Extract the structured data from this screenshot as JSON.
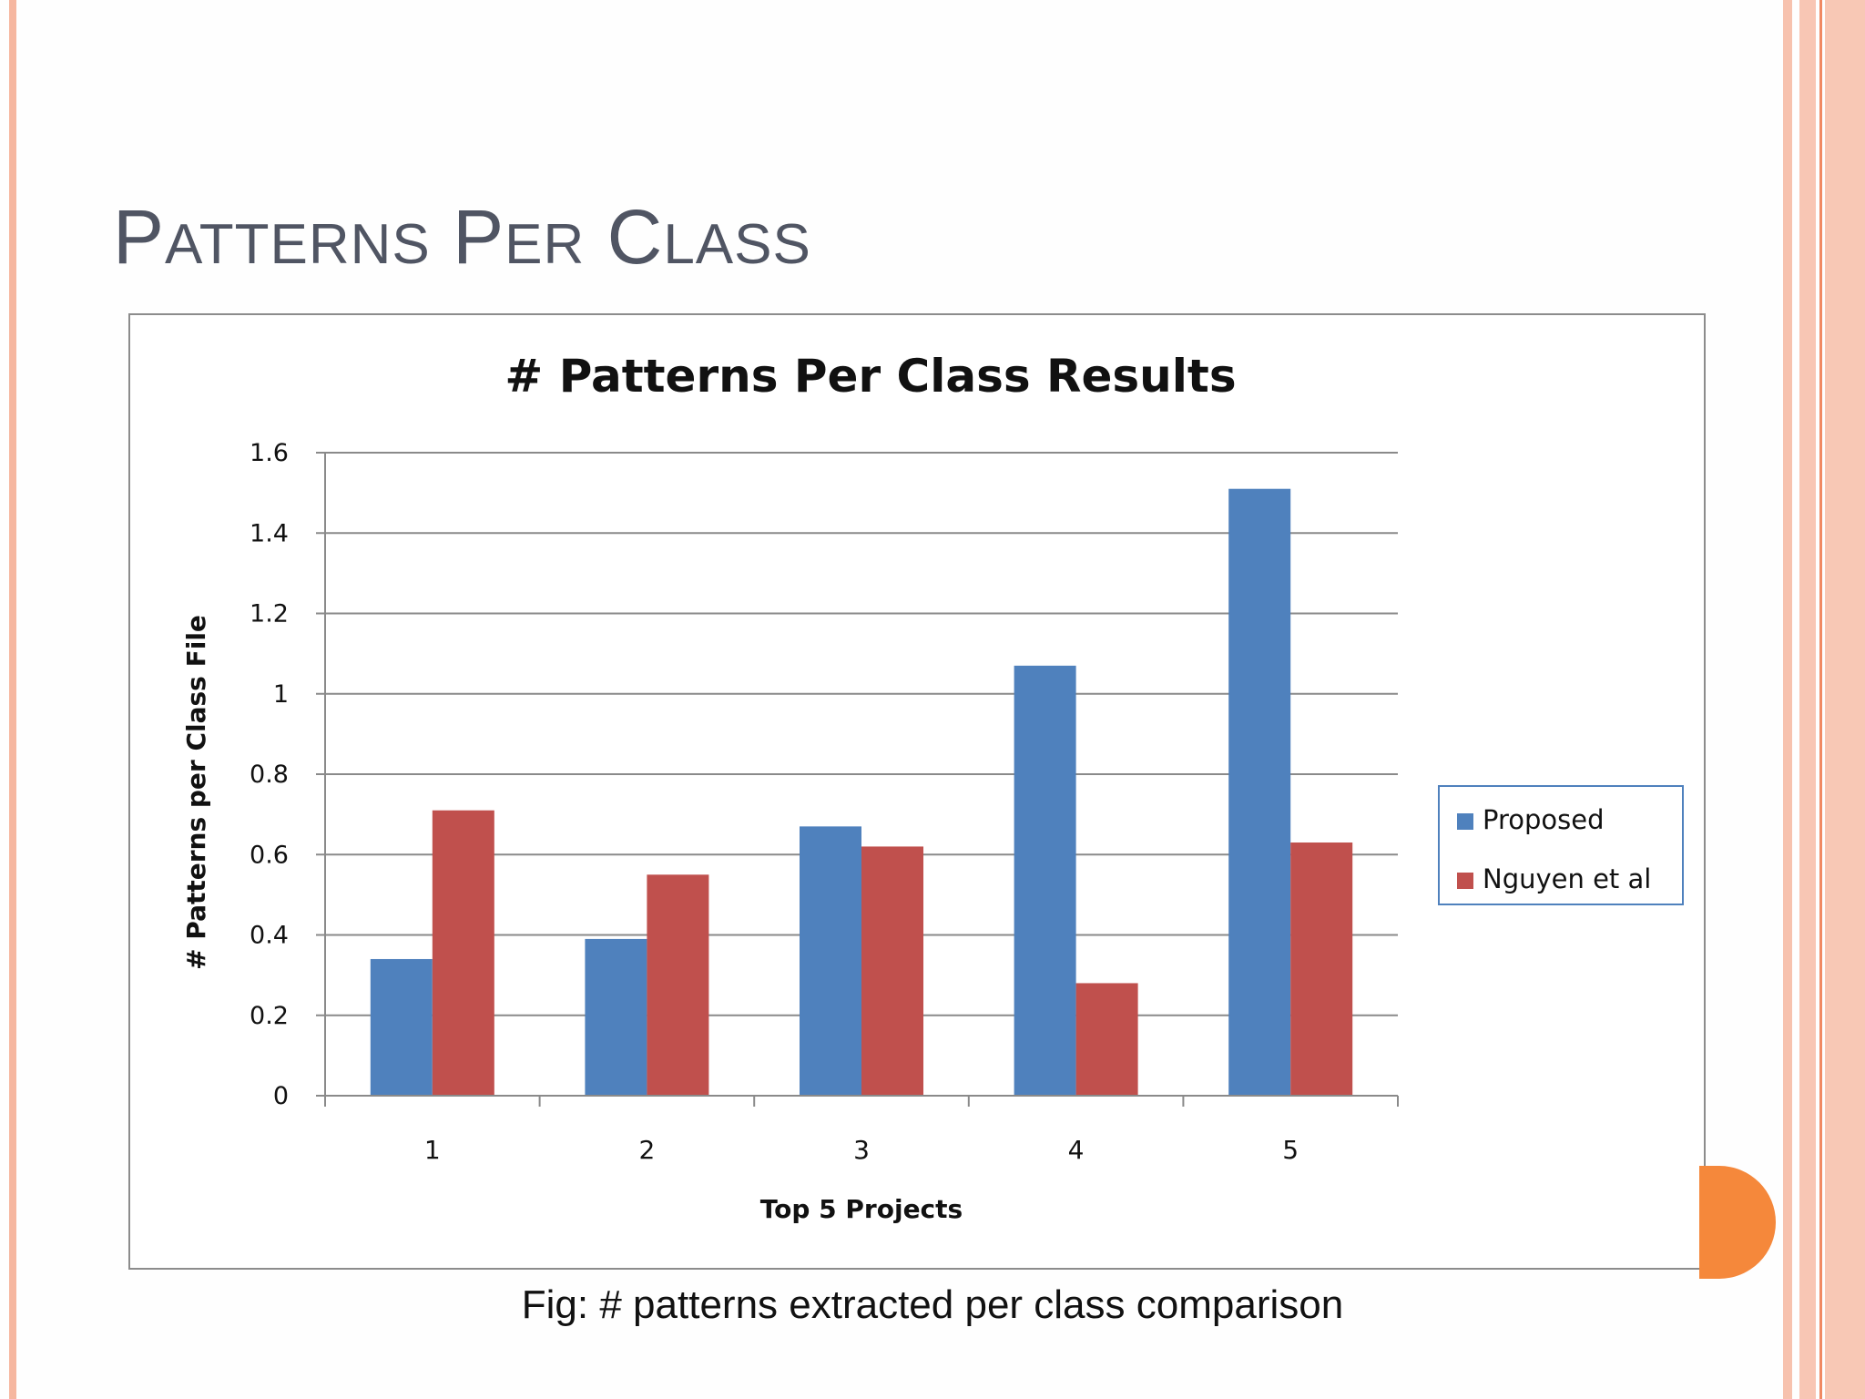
{
  "slide": {
    "title_big_1": "P",
    "title_small_1": "ATTERNS",
    "title_big_2": "P",
    "title_small_2": "ER",
    "title_big_3": "C",
    "title_small_3": "LASS",
    "caption": "Fig: # patterns extracted per class comparison"
  },
  "chart_data": {
    "type": "bar",
    "title": "# Patterns Per Class Results",
    "xlabel": "Top 5 Projects",
    "ylabel": "# Patterns per Class File",
    "categories": [
      "1",
      "2",
      "3",
      "4",
      "5"
    ],
    "series": [
      {
        "name": "Proposed",
        "values": [
          0.34,
          0.39,
          0.67,
          1.07,
          1.51
        ],
        "color": "#4f81bd"
      },
      {
        "name": "Nguyen et al",
        "values": [
          0.71,
          0.55,
          0.62,
          0.28,
          0.63
        ],
        "color": "#c0504d"
      }
    ],
    "ylim": [
      0,
      1.6
    ],
    "yticks": [
      "0",
      "0.2",
      "0.4",
      "0.6",
      "0.8",
      "1",
      "1.2",
      "1.4",
      "1.6"
    ],
    "grid": true,
    "legend_position": "right"
  },
  "colors": {
    "title_text": "#505563",
    "accent_orange": "#f5883b",
    "border_peach": "#f6b7a0"
  }
}
